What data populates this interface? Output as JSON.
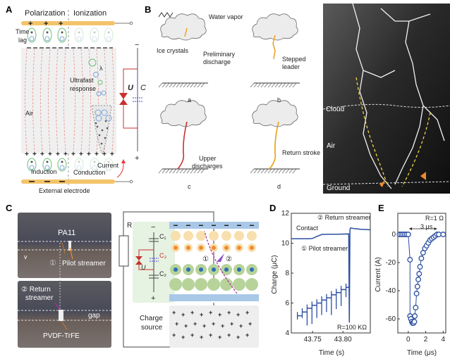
{
  "panels": {
    "A": {
      "label": "A",
      "polarization": "Polarization",
      "ionization": "Ionization",
      "time": "Time",
      "lag": "lag",
      "ultrafast": "Ultrafast",
      "response": "response",
      "lambda": "λ",
      "air": "Air",
      "current": "Current",
      "induction": "Induction",
      "conduction": "Conduction",
      "external_electrode": "External electrode",
      "u": "U",
      "c": "C",
      "minus": "−",
      "plus": "+"
    },
    "B": {
      "label": "B",
      "water_vapor": "Water vapor",
      "ice_crystals": "Ice crystals",
      "preliminary": "Preliminary",
      "discharge": "discharge",
      "stepped": "Stepped",
      "leader": "leader",
      "upper": "Upper",
      "discharges": "discharges",
      "return_stroke": "Return stroke",
      "sub_a": "a",
      "sub_b": "b",
      "sub_c": "c",
      "sub_d": "d",
      "cloud": "Cloud",
      "air": "Air",
      "ground": "Ground"
    },
    "C": {
      "label": "C",
      "pa11": "PA11",
      "v": "v",
      "one": "①",
      "pilot_streamer": "Pilot streamer",
      "two_return": "② Return",
      "streamer": "streamer",
      "gap": "gap",
      "pvdf": "PVDF-TrFE",
      "r": "R",
      "c1": "C₁",
      "c2": "C₂",
      "c3": "C₃",
      "u": "U",
      "minus": "−",
      "plus": "+",
      "charge": "Charge",
      "source": "source",
      "two": "②"
    }
  },
  "colors": {
    "electrode": "#f3c46a",
    "curve": "#2b4ea2",
    "circuit_red": "#c8312f",
    "layer_blue": "#a9c8e8",
    "positive_layer": "#f7dfae",
    "negative_layer": "#b7d39a"
  },
  "chart_data": [
    {
      "panel": "D",
      "type": "line",
      "xlabel": "Time (s)",
      "ylabel": "Charge (μC)",
      "xlim": [
        43.715,
        43.845
      ],
      "ylim": [
        4,
        12
      ],
      "xticks": [
        43.75,
        43.8
      ],
      "xtick_labels": [
        "43.75",
        "43.80"
      ],
      "yticks": [
        4,
        6,
        8,
        10,
        12
      ],
      "ytick_labels": [
        "4",
        "6",
        "8",
        "10",
        "12"
      ],
      "annotations": {
        "contact": "Contact",
        "return_streamer": "② Return streamer",
        "pilot_streamer": "① Pilot streamer",
        "resistance": "R=100 KΩ"
      },
      "series": [
        {
          "x": [
            43.715,
            43.745,
            43.75,
            43.757,
            43.765,
            43.775,
            43.79,
            43.8095,
            43.8105,
            43.8115,
            43.8125,
            43.815,
            43.82,
            43.83,
            43.845
          ],
          "y": [
            10.3,
            10.3,
            10.32,
            10.45,
            10.58,
            10.6,
            10.6,
            10.62,
            4.7,
            10.9,
            11.02,
            11.0,
            10.97,
            10.93,
            10.9
          ]
        },
        {
          "step_x": [
            43.725,
            43.733,
            43.741,
            43.749,
            43.757,
            43.765,
            43.773,
            43.781,
            43.789,
            43.797,
            43.805
          ],
          "step_y": [
            5.15,
            5.4,
            5.65,
            5.85,
            6.0,
            6.2,
            6.35,
            6.55,
            6.7,
            6.9,
            7.05
          ],
          "spike_min": [
            4.9,
            5.0,
            4.5,
            4.6,
            5.0,
            5.2,
            5.4,
            5.2,
            5.6,
            5.8,
            6.4
          ]
        }
      ]
    },
    {
      "panel": "E",
      "type": "scatter",
      "xlabel": "Time (μs)",
      "ylabel": "Current (A)",
      "xlim": [
        -1.2,
        4.3
      ],
      "ylim": [
        -70,
        15
      ],
      "xticks": [
        0,
        2,
        4
      ],
      "xtick_labels": [
        "0",
        "2",
        "4"
      ],
      "yticks": [
        0,
        -20,
        -40,
        -60
      ],
      "ytick_labels": [
        "0",
        "-20",
        "-40",
        "-60"
      ],
      "annotations": {
        "resistance": "R=1 Ω",
        "duration": "3 μs"
      },
      "x": [
        -1.0,
        -0.8,
        -0.6,
        -0.4,
        -0.2,
        0.0,
        0.2,
        0.2,
        0.3,
        0.4,
        0.5,
        0.6,
        0.7,
        0.75,
        0.85,
        0.95,
        1.05,
        1.15,
        1.25,
        1.35,
        1.5,
        1.7,
        1.9,
        2.1,
        2.3,
        2.5,
        2.7,
        2.9,
        3.1,
        3.3,
        3.5,
        4.0
      ],
      "y": [
        0,
        0,
        0,
        0,
        0,
        0,
        -18,
        -58,
        -60,
        -62,
        -63,
        -63,
        -62,
        -58,
        -52,
        -42,
        -37,
        -32,
        -28,
        -23,
        -17,
        -13,
        -10,
        -8,
        -6,
        -4,
        -3,
        -2,
        -1,
        0,
        0,
        0
      ]
    }
  ]
}
